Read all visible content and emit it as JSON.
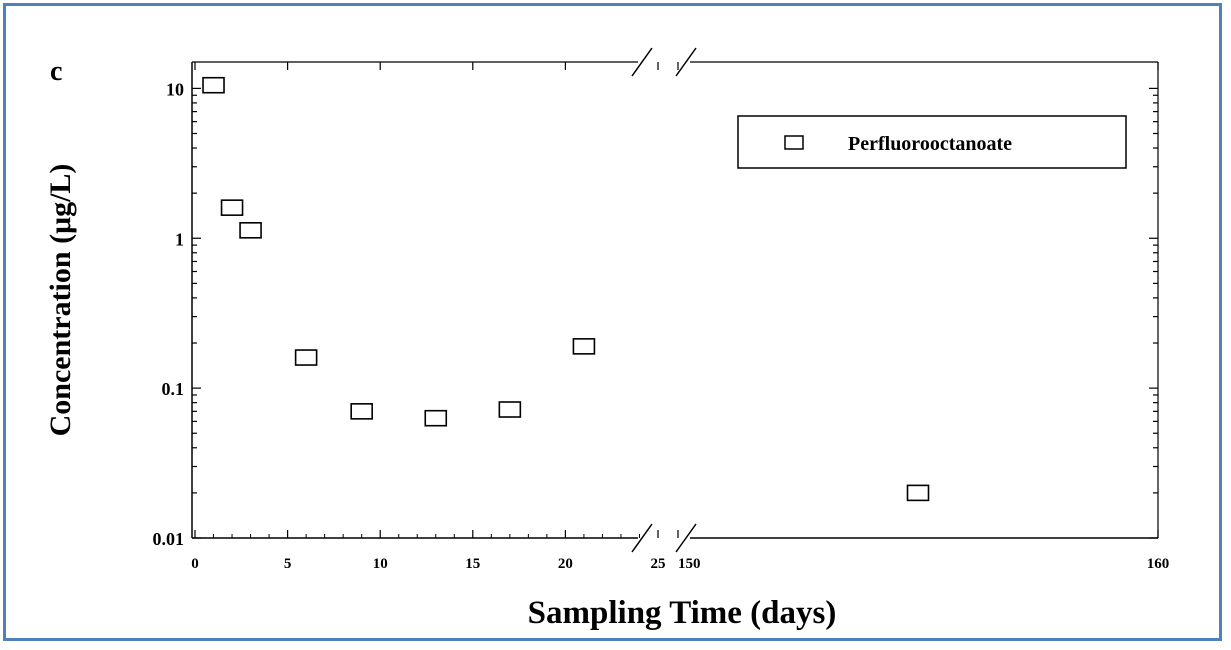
{
  "chart_data": {
    "type": "scatter",
    "panel_label": "c",
    "xlabel": "Sampling Time (days)",
    "ylabel": "Concentration (μg/L)",
    "y_scale": "log",
    "ylim": [
      0.01,
      15
    ],
    "y_ticks": [
      {
        "value": 0.01,
        "label": "0.01"
      },
      {
        "value": 0.1,
        "label": "0.1"
      },
      {
        "value": 1,
        "label": "1"
      },
      {
        "value": 10,
        "label": "10"
      }
    ],
    "x_axis_broken": true,
    "x_segments": [
      {
        "range": [
          0,
          25
        ],
        "ticks": [
          0,
          5,
          10,
          15,
          20,
          25
        ],
        "tick_labels": [
          "0",
          "5",
          "10",
          "15",
          "20",
          "25"
        ]
      },
      {
        "range": [
          150,
          160
        ],
        "ticks": [
          150,
          160
        ],
        "tick_labels": [
          "150",
          "160"
        ]
      }
    ],
    "legend": {
      "position": "top-right",
      "entries": [
        "Perfluorooctanoate"
      ]
    },
    "grid": false,
    "series": [
      {
        "name": "Perfluorooctanoate",
        "marker": "open-square",
        "points": [
          {
            "x": 1,
            "y": 10.5
          },
          {
            "x": 2,
            "y": 1.6
          },
          {
            "x": 3,
            "y": 1.13
          },
          {
            "x": 6,
            "y": 0.16
          },
          {
            "x": 9,
            "y": 0.07
          },
          {
            "x": 13,
            "y": 0.063
          },
          {
            "x": 17,
            "y": 0.072
          },
          {
            "x": 21,
            "y": 0.19
          },
          {
            "x": 155,
            "y": 0.02
          }
        ]
      }
    ]
  }
}
